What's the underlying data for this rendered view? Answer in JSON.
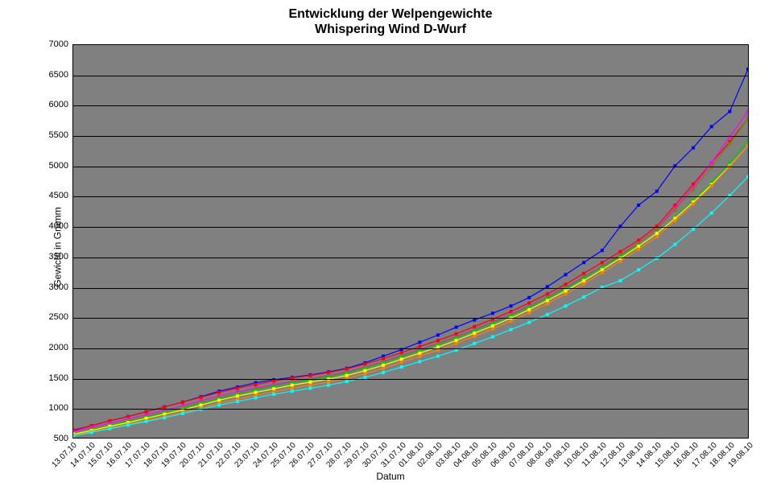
{
  "chart": {
    "type": "line",
    "title_line1": "Entwicklung der Welpengewichte",
    "title_line2": "Whispering Wind D-Wurf",
    "title_fontsize": 16,
    "ylabel": "Gewicht in Gramm",
    "xlabel": "Datum",
    "label_fontsize": 12,
    "tick_fontsize": 11,
    "background_color": "#ffffff",
    "plot_background_color": "#808080",
    "grid_color": "#000000",
    "ymin": 500,
    "ymax": 7000,
    "ytick_step": 500,
    "categories": [
      "13.07.10",
      "14.07.10",
      "15.07.10",
      "16.07.10",
      "17.07.10",
      "18.07.10",
      "19.07.10",
      "20.07.10",
      "21.07.10",
      "22.07.10",
      "23.07.10",
      "24.07.10",
      "25.07.10",
      "26.07.10",
      "27.07.10",
      "28.07.10",
      "29.07.10",
      "30.07.10",
      "31.07.10",
      "01.08.10",
      "02.08.10",
      "03.08.10",
      "04.08.10",
      "05.08.10",
      "06.08.10",
      "07.08.10",
      "08.08.10",
      "09.08.10",
      "10.08.10",
      "11.08.10",
      "12.08.10",
      "13.08.10",
      "14.08.10",
      "15.08.10",
      "16.08.10",
      "17.08.10",
      "18.08.10",
      "19.08.10"
    ],
    "marker_size": 4,
    "line_width": 1.2,
    "series": [
      {
        "name": "blue",
        "color": "#0000ff",
        "values": [
          620,
          700,
          780,
          850,
          930,
          1010,
          1090,
          1180,
          1270,
          1340,
          1410,
          1460,
          1500,
          1540,
          1590,
          1650,
          1740,
          1850,
          1960,
          2080,
          2200,
          2330,
          2450,
          2560,
          2680,
          2820,
          3000,
          3200,
          3400,
          3600,
          4000,
          4350,
          4580,
          5000,
          5300,
          5650,
          5900,
          6600
        ]
      },
      {
        "name": "red",
        "color": "#ff0000",
        "values": [
          630,
          700,
          780,
          850,
          930,
          1010,
          1090,
          1170,
          1250,
          1320,
          1380,
          1440,
          1490,
          1530,
          1580,
          1640,
          1720,
          1810,
          1910,
          2010,
          2110,
          2220,
          2340,
          2460,
          2590,
          2730,
          2880,
          3040,
          3220,
          3400,
          3580,
          3770,
          4000,
          4350,
          4700,
          5050,
          5400,
          5780
        ]
      },
      {
        "name": "magenta",
        "color": "#ff00ff",
        "values": [
          600,
          670,
          740,
          810,
          880,
          950,
          1030,
          1110,
          1190,
          1260,
          1320,
          1380,
          1430,
          1480,
          1530,
          1590,
          1670,
          1760,
          1860,
          1960,
          2060,
          2170,
          2290,
          2410,
          2540,
          2680,
          2830,
          2990,
          3160,
          3340,
          3530,
          3730,
          3960,
          4300,
          4650,
          5050,
          5480,
          5900
        ]
      },
      {
        "name": "olive",
        "color": "#808000",
        "values": [
          570,
          640,
          710,
          780,
          850,
          920,
          1000,
          1080,
          1160,
          1230,
          1300,
          1360,
          1420,
          1470,
          1520,
          1580,
          1660,
          1750,
          1850,
          1950,
          2050,
          2160,
          2280,
          2400,
          2530,
          2670,
          2820,
          2980,
          3150,
          3330,
          3520,
          3720,
          3950,
          4270,
          4610,
          4980,
          5370,
          5780
        ]
      },
      {
        "name": "green",
        "color": "#00cc00",
        "values": [
          560,
          630,
          700,
          770,
          840,
          910,
          990,
          1070,
          1150,
          1220,
          1290,
          1350,
          1410,
          1460,
          1510,
          1570,
          1650,
          1740,
          1840,
          1940,
          2040,
          2150,
          2270,
          2390,
          2520,
          2660,
          2810,
          2970,
          3140,
          3320,
          3500,
          3680,
          3880,
          4140,
          4420,
          4720,
          5050,
          5410
        ]
      },
      {
        "name": "yellow",
        "color": "#ffff00",
        "values": [
          560,
          620,
          690,
          750,
          820,
          890,
          960,
          1040,
          1120,
          1190,
          1250,
          1310,
          1370,
          1420,
          1470,
          1530,
          1610,
          1700,
          1800,
          1900,
          2000,
          2110,
          2230,
          2350,
          2480,
          2620,
          2770,
          2930,
          3100,
          3280,
          3470,
          3670,
          3880,
          4130,
          4400,
          4690,
          5000,
          5330
        ]
      },
      {
        "name": "orange",
        "color": "#ff8000",
        "values": [
          540,
          600,
          660,
          720,
          780,
          850,
          920,
          990,
          1070,
          1140,
          1200,
          1260,
          1320,
          1370,
          1420,
          1480,
          1560,
          1650,
          1750,
          1850,
          1950,
          2060,
          2180,
          2300,
          2430,
          2570,
          2720,
          2880,
          3050,
          3230,
          3420,
          3620,
          3830,
          4090,
          4370,
          4670,
          4990,
          5330
        ]
      },
      {
        "name": "cyan",
        "color": "#00ffff",
        "values": [
          530,
          590,
          650,
          710,
          770,
          830,
          900,
          970,
          1040,
          1100,
          1160,
          1220,
          1270,
          1320,
          1370,
          1430,
          1500,
          1580,
          1670,
          1760,
          1850,
          1950,
          2060,
          2170,
          2290,
          2410,
          2540,
          2680,
          2830,
          2990,
          3100,
          3280,
          3470,
          3700,
          3950,
          4220,
          4510,
          4820
        ]
      }
    ]
  }
}
